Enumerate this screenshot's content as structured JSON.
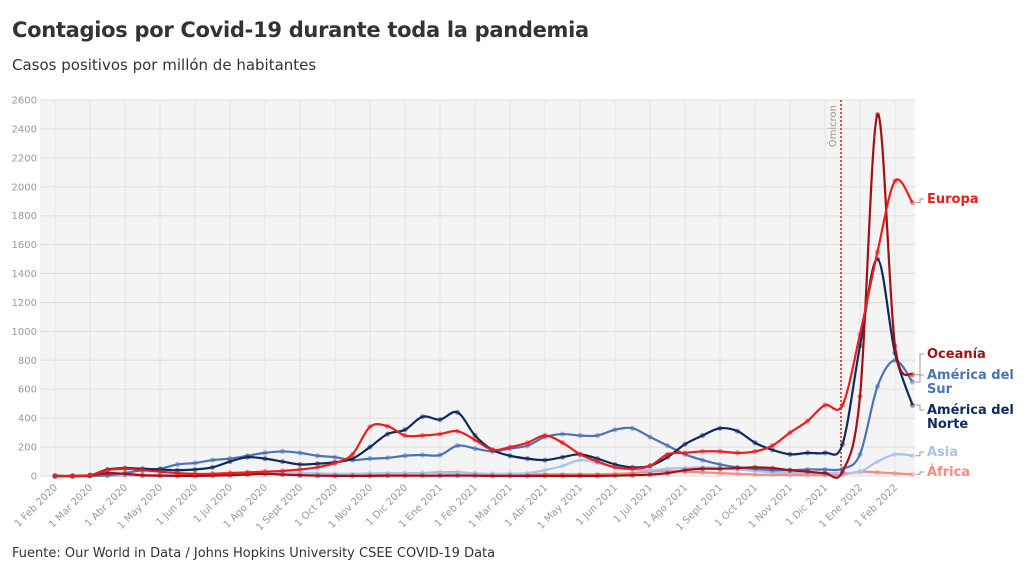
{
  "chart_data": {
    "type": "line",
    "title": "Contagios por Covid-19 durante toda la pandemia",
    "subtitle": "Casos positivos por millón de habitantes",
    "source": "Fuente: Our World in Data / Johns Hopkins University CSEE COVID-19 Data",
    "ylim": [
      0,
      2600
    ],
    "yticks": [
      0,
      200,
      400,
      600,
      800,
      1000,
      1200,
      1400,
      1600,
      1800,
      2000,
      2200,
      2400,
      2600
    ],
    "xlim": [
      "2020-02-01",
      "2022-02-15"
    ],
    "xticks": [
      "1 Feb 2020",
      "1 Mar 2020",
      "1 Abr 2020",
      "1 May 2020",
      "1 Jun 2020",
      "1 Jul 2020",
      "1 Ago 2020",
      "1 Sept 2020",
      "1 Oct 2020",
      "1 Nov 2020",
      "1 Dic 2020",
      "1 Ene 2021",
      "1 Feb 2021",
      "1 Mar 2021",
      "1 Abr 2021",
      "1 May 2021",
      "1 Jun 2021",
      "1 Jul 2021",
      "1 Ago 2021",
      "1 Sept 2021",
      "1 Oct 2021",
      "1 Nov 2021",
      "1 Dic 2021",
      "1 Ene 2022",
      "1 Feb 2022"
    ],
    "x_step": "semi-monthly from 1 Feb 2020",
    "grid": true,
    "annotation": {
      "label": "Ómicron",
      "date": "1 Dic 2021",
      "color": "#e02020"
    },
    "series": [
      {
        "name": "Europa",
        "color": "#ee1c1c",
        "values": [
          0,
          0,
          5,
          40,
          50,
          40,
          30,
          20,
          15,
          15,
          20,
          25,
          30,
          35,
          45,
          60,
          90,
          150,
          340,
          345,
          280,
          280,
          290,
          310,
          250,
          180,
          200,
          230,
          280,
          230,
          150,
          100,
          60,
          50,
          70,
          150,
          160,
          170,
          170,
          160,
          170,
          210,
          300,
          380,
          490,
          490,
          980,
          1550,
          2040,
          1890
        ]
      },
      {
        "name": "Oceanía",
        "color": "#a30f14",
        "values": [
          0,
          0,
          5,
          20,
          15,
          5,
          2,
          1,
          1,
          2,
          5,
          10,
          15,
          10,
          5,
          2,
          1,
          1,
          1,
          2,
          2,
          2,
          2,
          3,
          2,
          1,
          1,
          1,
          1,
          1,
          1,
          1,
          2,
          5,
          10,
          20,
          40,
          50,
          50,
          55,
          60,
          55,
          40,
          30,
          20,
          30,
          550,
          2500,
          900,
          700
        ]
      },
      {
        "name": "América del Sur",
        "color": "#4a74b4",
        "values": [
          0,
          0,
          1,
          5,
          20,
          40,
          50,
          80,
          90,
          110,
          120,
          140,
          160,
          170,
          160,
          140,
          130,
          110,
          120,
          125,
          140,
          145,
          145,
          210,
          190,
          170,
          190,
          210,
          270,
          290,
          280,
          280,
          320,
          330,
          270,
          210,
          150,
          110,
          80,
          60,
          50,
          40,
          40,
          45,
          45,
          50,
          150,
          620,
          800,
          650
        ]
      },
      {
        "name": "América del Norte",
        "color": "#0f2a5c",
        "values": [
          0,
          0,
          5,
          45,
          55,
          50,
          45,
          40,
          45,
          60,
          100,
          130,
          120,
          100,
          80,
          85,
          95,
          120,
          200,
          290,
          320,
          410,
          390,
          440,
          280,
          180,
          140,
          120,
          110,
          130,
          150,
          120,
          80,
          60,
          70,
          130,
          220,
          280,
          330,
          310,
          230,
          180,
          150,
          160,
          160,
          220,
          900,
          1500,
          850,
          490
        ]
      },
      {
        "name": "Asia",
        "color": "#a6c4ef",
        "values": [
          0,
          0,
          2,
          3,
          5,
          5,
          6,
          7,
          8,
          10,
          12,
          15,
          18,
          20,
          20,
          18,
          15,
          15,
          18,
          20,
          20,
          20,
          18,
          20,
          18,
          15,
          15,
          20,
          40,
          70,
          110,
          90,
          60,
          45,
          40,
          50,
          55,
          60,
          55,
          45,
          35,
          25,
          20,
          20,
          20,
          20,
          30,
          100,
          150,
          140
        ]
      },
      {
        "name": "África",
        "color": "#f38b80",
        "values": [
          0,
          0,
          0,
          1,
          2,
          3,
          5,
          7,
          10,
          15,
          20,
          22,
          20,
          15,
          10,
          8,
          7,
          8,
          10,
          12,
          15,
          20,
          25,
          25,
          18,
          12,
          12,
          12,
          12,
          12,
          12,
          12,
          15,
          20,
          30,
          35,
          30,
          25,
          20,
          15,
          10,
          8,
          6,
          6,
          5,
          10,
          30,
          25,
          18,
          12
        ]
      }
    ]
  }
}
